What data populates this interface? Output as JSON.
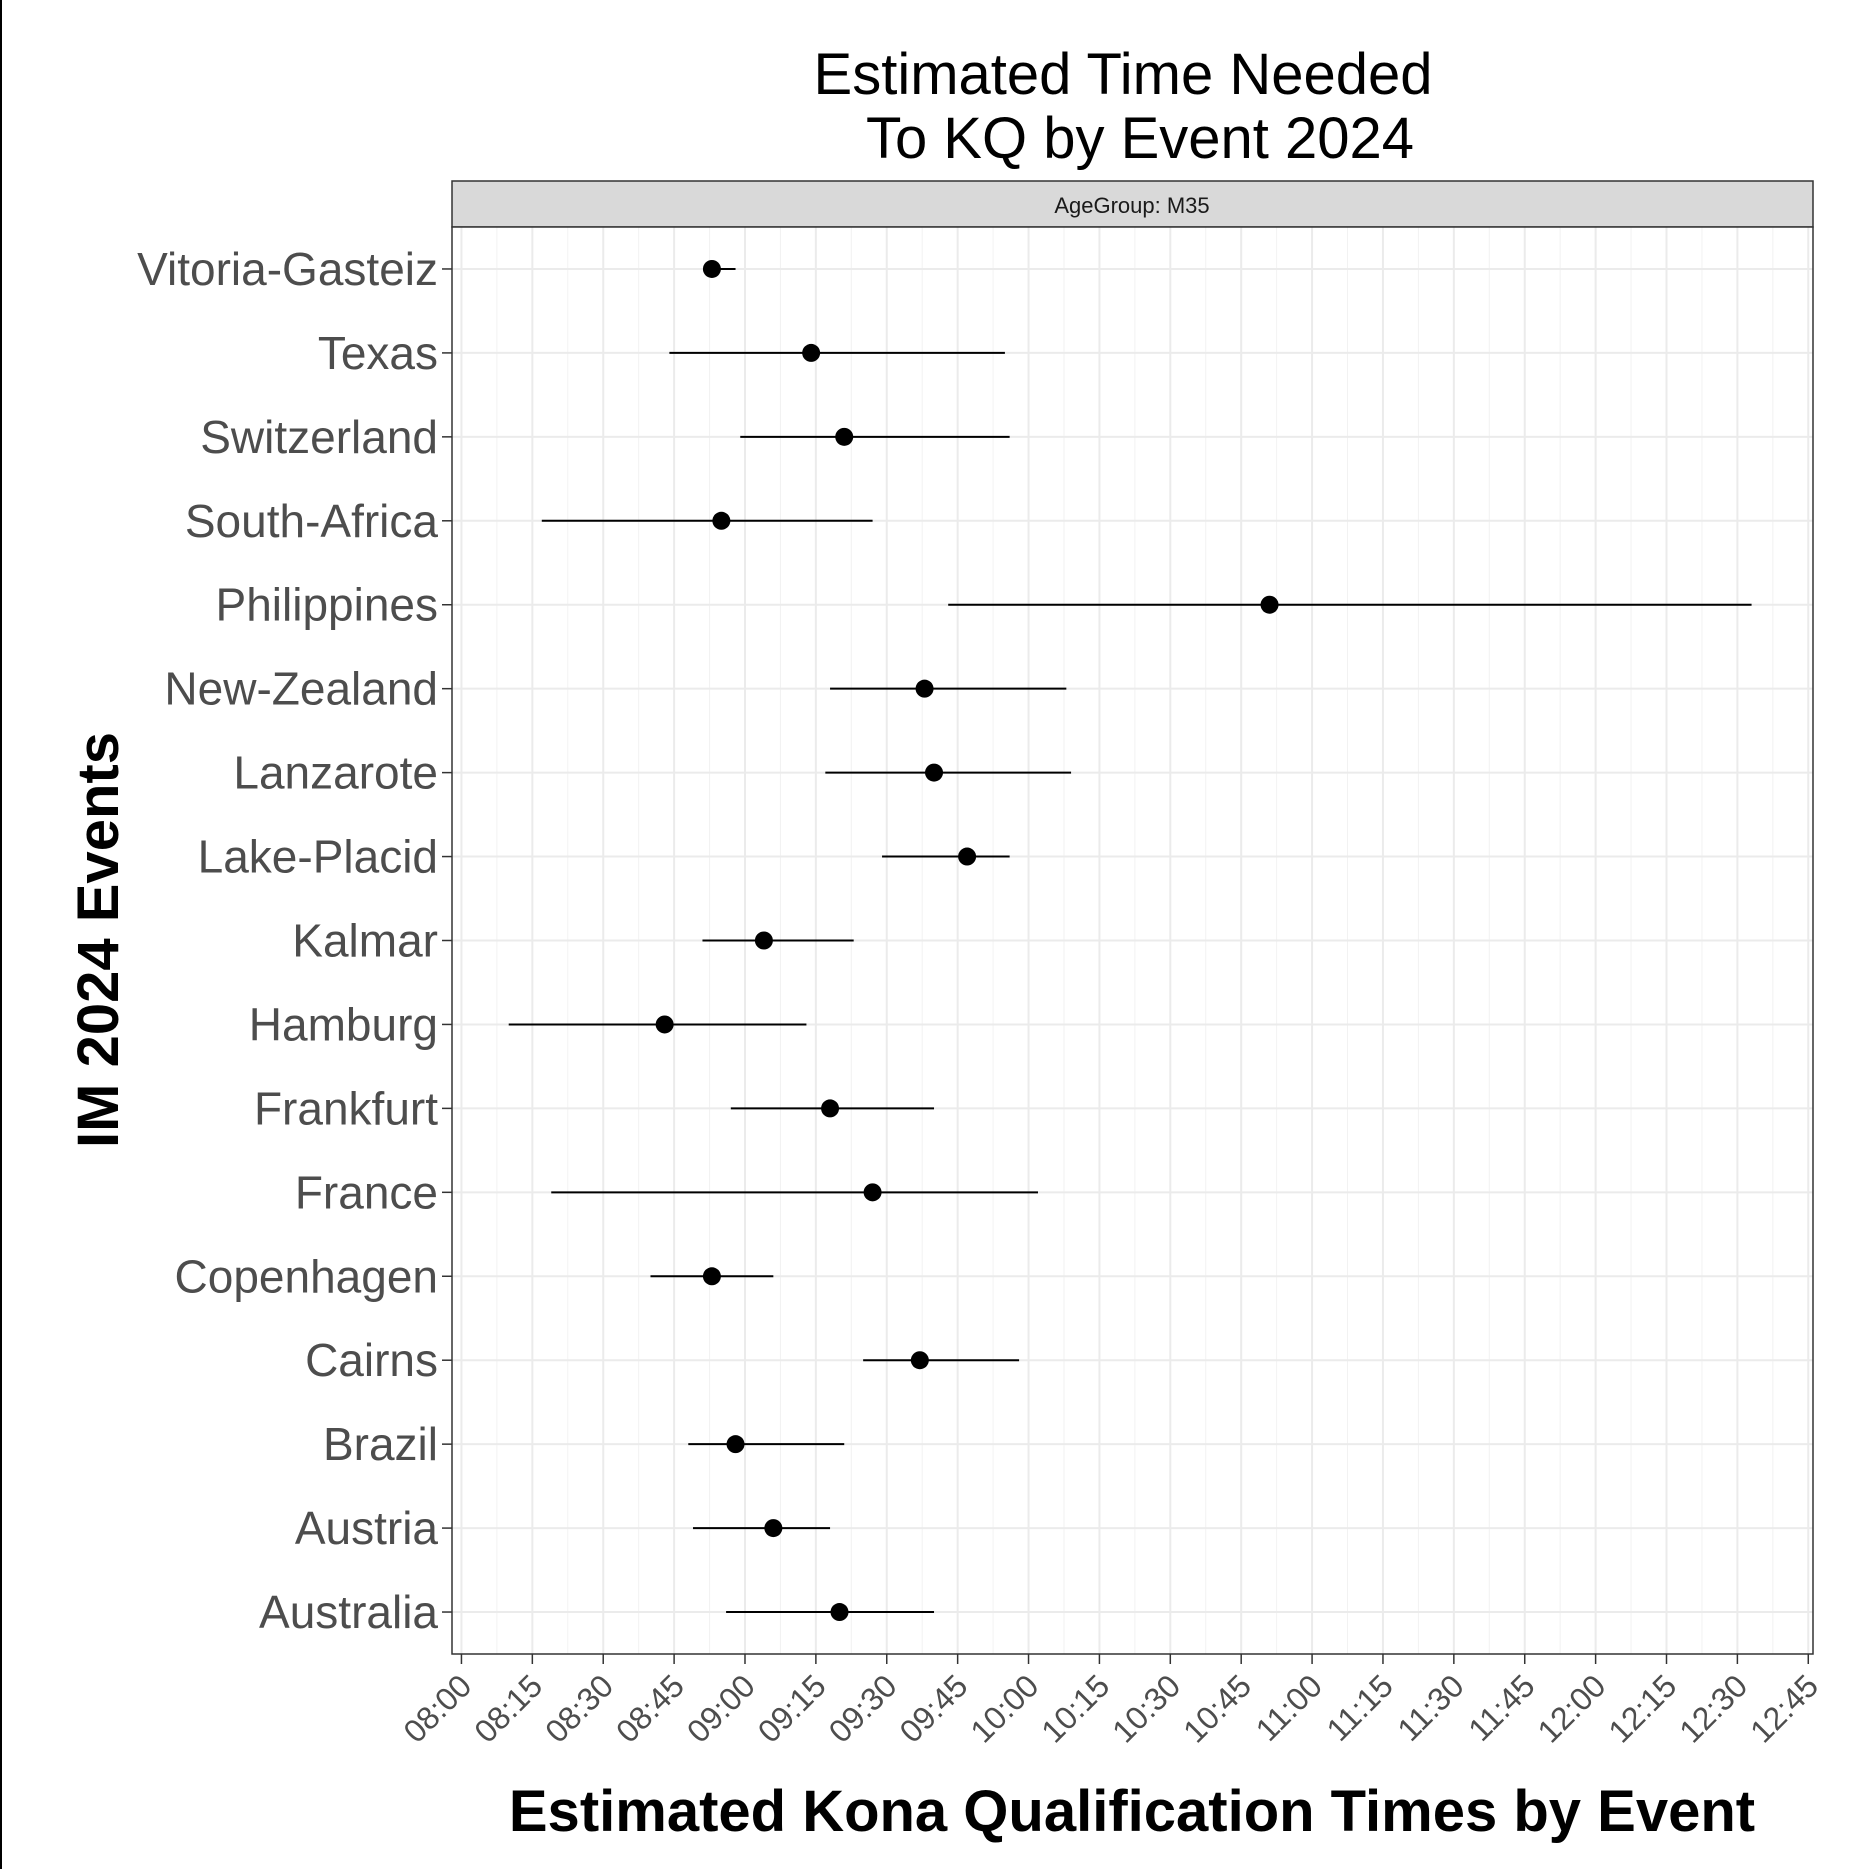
{
  "chart_data": {
    "type": "scatter",
    "subtype": "point-range",
    "title_lines": [
      "Estimated Time Needed",
      "To KQ by Event 2024"
    ],
    "facet_label": "AgeGroup: M35",
    "xlabel": "Estimated Kona Qualification Times by Event",
    "ylabel": "IM 2024 Events",
    "x_unit": "clock time (HH:MM)",
    "xlim": [
      "07:58",
      "12:46"
    ],
    "x_ticks": [
      "08:00",
      "08:15",
      "08:30",
      "08:45",
      "09:00",
      "09:15",
      "09:30",
      "09:45",
      "10:00",
      "10:15",
      "10:30",
      "10:45",
      "11:00",
      "11:15",
      "11:30",
      "11:45",
      "12:00",
      "12:15",
      "12:30",
      "12:45"
    ],
    "grid": true,
    "theme": "bw",
    "point_color": "#000000",
    "categories": [
      "Vitoria-Gasteiz",
      "Texas",
      "Switzerland",
      "South-Africa",
      "Philippines",
      "New-Zealand",
      "Lanzarote",
      "Lake-Placid",
      "Kalmar",
      "Hamburg",
      "Frankfurt",
      "France",
      "Copenhagen",
      "Cairns",
      "Brazil",
      "Austria",
      "Australia"
    ],
    "series": [
      {
        "points": [
          {
            "event": "Vitoria-Gasteiz",
            "estimate": "08:53",
            "low": "08:52",
            "high": "08:58"
          },
          {
            "event": "Texas",
            "estimate": "09:14",
            "low": "08:44",
            "high": "09:55"
          },
          {
            "event": "Switzerland",
            "estimate": "09:21",
            "low": "08:59",
            "high": "09:56"
          },
          {
            "event": "South-Africa",
            "estimate": "08:55",
            "low": "08:17",
            "high": "09:27"
          },
          {
            "event": "Philippines",
            "estimate": "10:51",
            "low": "09:43",
            "high": "12:33"
          },
          {
            "event": "New-Zealand",
            "estimate": "09:38",
            "low": "09:18",
            "high": "10:08"
          },
          {
            "event": "Lanzarote",
            "estimate": "09:40",
            "low": "09:17",
            "high": "10:09"
          },
          {
            "event": "Lake-Placid",
            "estimate": "09:47",
            "low": "09:29",
            "high": "09:56"
          },
          {
            "event": "Kalmar",
            "estimate": "09:04",
            "low": "08:51",
            "high": "09:23"
          },
          {
            "event": "Hamburg",
            "estimate": "08:43",
            "low": "08:10",
            "high": "09:13"
          },
          {
            "event": "Frankfurt",
            "estimate": "09:18",
            "low": "08:57",
            "high": "09:40"
          },
          {
            "event": "France",
            "estimate": "09:27",
            "low": "08:19",
            "high": "10:02"
          },
          {
            "event": "Copenhagen",
            "estimate": "08:53",
            "low": "08:40",
            "high": "09:06"
          },
          {
            "event": "Cairns",
            "estimate": "09:37",
            "low": "09:25",
            "high": "09:58"
          },
          {
            "event": "Brazil",
            "estimate": "08:58",
            "low": "08:48",
            "high": "09:21"
          },
          {
            "event": "Austria",
            "estimate": "09:06",
            "low": "08:49",
            "high": "09:18"
          },
          {
            "event": "Australia",
            "estimate": "09:20",
            "low": "08:56",
            "high": "09:40"
          }
        ]
      }
    ]
  }
}
